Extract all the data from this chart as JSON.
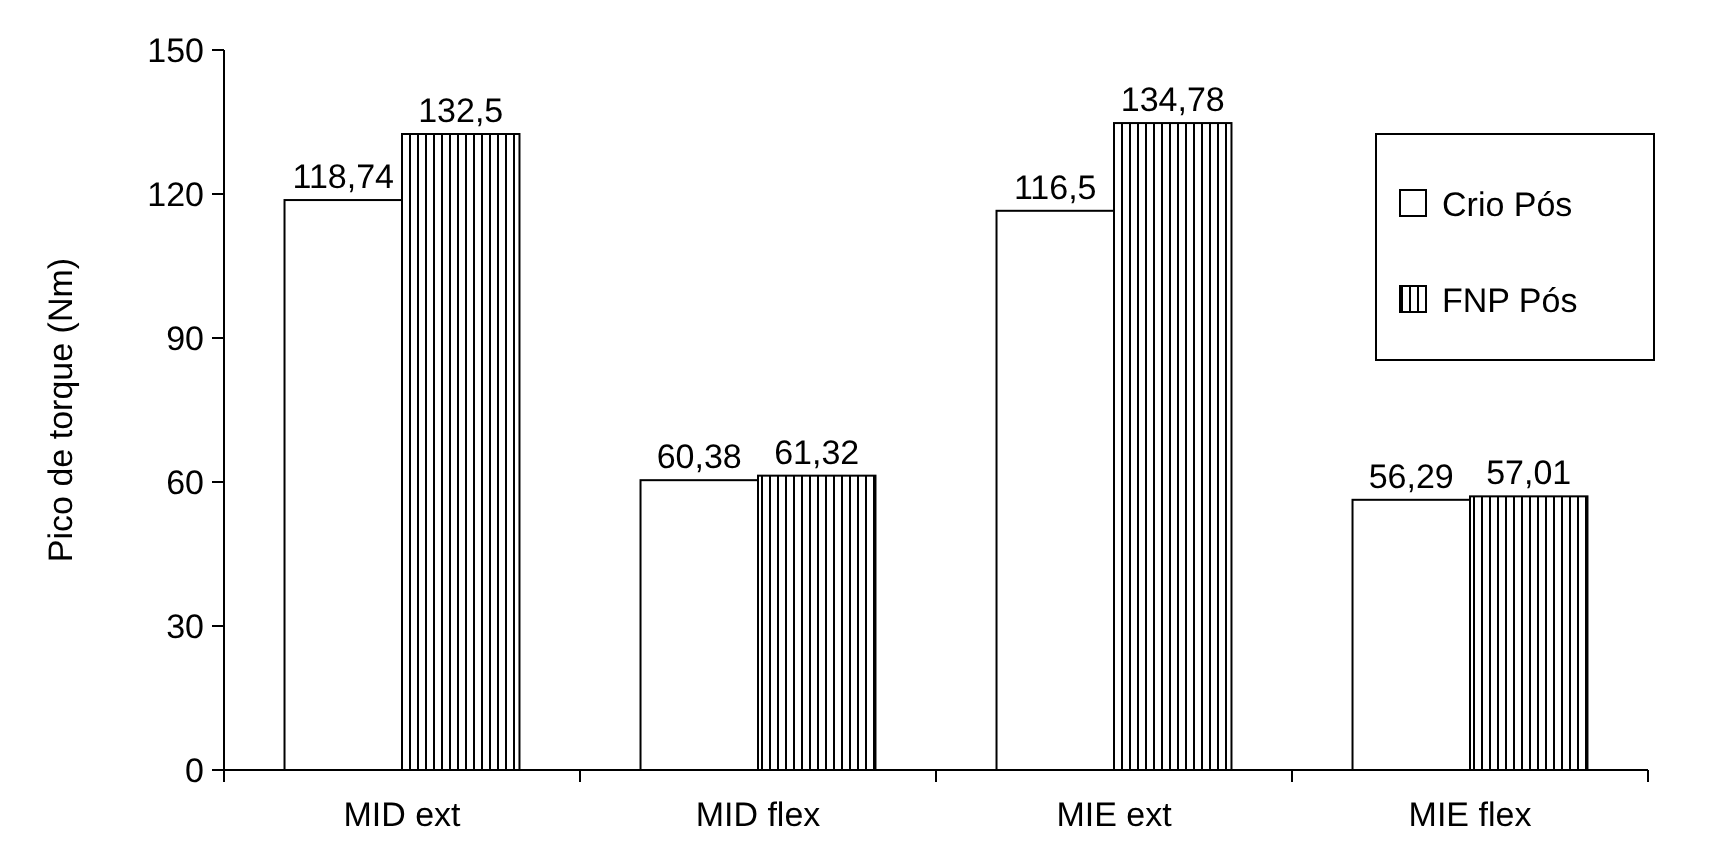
{
  "chart_data": {
    "type": "bar",
    "ylabel": "Pico de torque (Nm)",
    "categories": [
      "MID ext",
      "MID flex",
      "MIE ext",
      "MIE flex"
    ],
    "series": [
      {
        "name": "Crio Pós",
        "color": "#ffffff",
        "values": [
          118.74,
          60.38,
          116.5,
          56.29
        ],
        "value_labels": [
          "118,74",
          "60,38",
          "116,5",
          "56,29"
        ]
      },
      {
        "name": "FNP Pós",
        "color": "#000000",
        "values": [
          132.5,
          61.32,
          134.78,
          57.01
        ],
        "value_labels": [
          "132,5",
          "61,32",
          "134,78",
          "57,01"
        ]
      }
    ],
    "ylim": [
      0,
      150
    ],
    "yticks": [
      0,
      30,
      60,
      90,
      120,
      150
    ],
    "grid": false,
    "legend": "right"
  }
}
